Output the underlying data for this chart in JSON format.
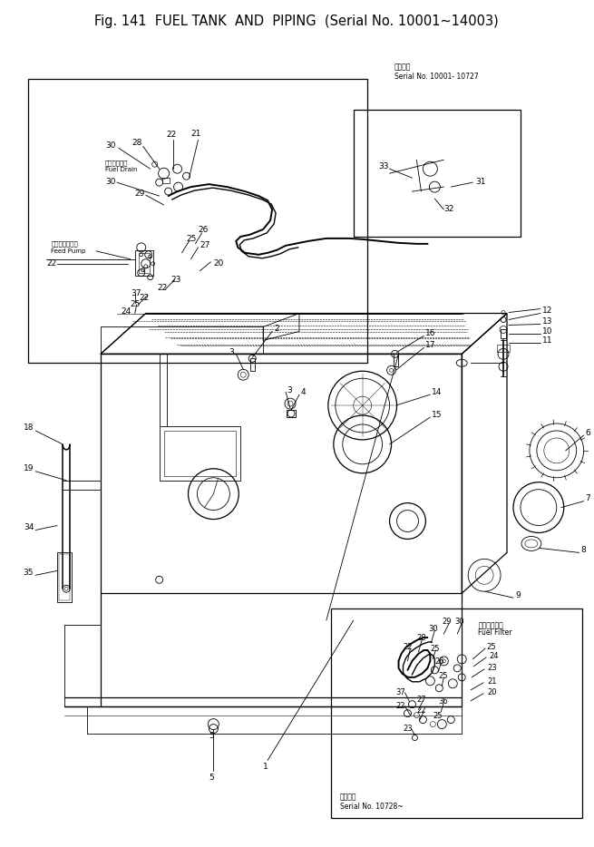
{
  "title": "Fig. 141  FUEL TANK  AND  PIPING  (Serial No. 10001~14003)",
  "bg_color": "#f5f5f0",
  "serial_note_top": "適用号機\nSerial No. 10001- 10727",
  "serial_note_bottom": "適用号機\nSerial No. 10728~",
  "figsize": [
    6.55,
    9.34
  ],
  "dpi": 100
}
